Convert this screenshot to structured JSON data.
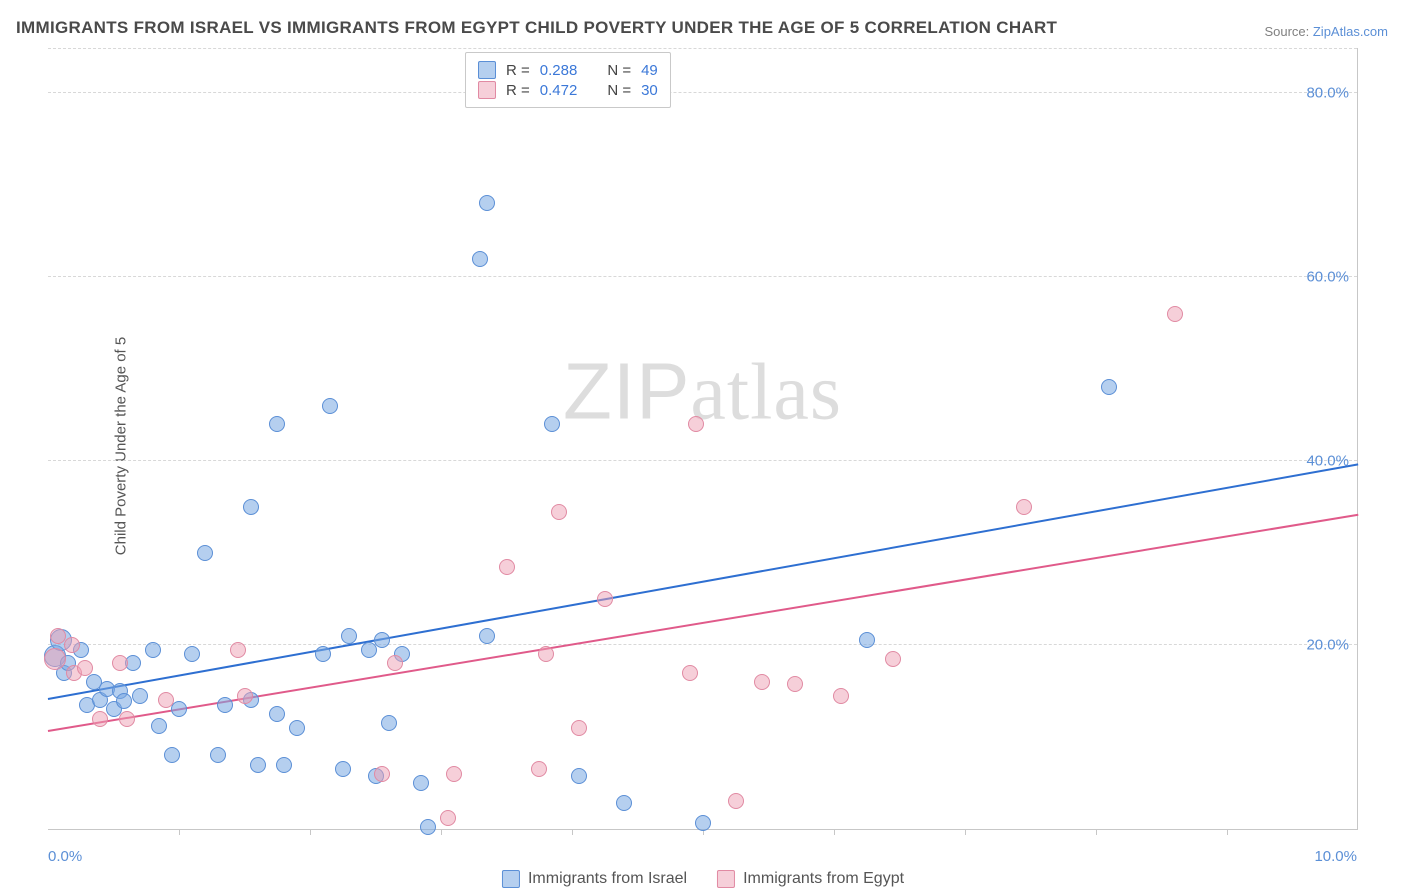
{
  "title": "IMMIGRANTS FROM ISRAEL VS IMMIGRANTS FROM EGYPT CHILD POVERTY UNDER THE AGE OF 5 CORRELATION CHART",
  "source_prefix": "Source: ",
  "source_name": "ZipAtlas.com",
  "ylabel": "Child Poverty Under the Age of 5",
  "watermark": "ZIPatlas",
  "chart": {
    "type": "scatter",
    "background_color": "#ffffff",
    "grid_color": "#d8d8d8",
    "axis_color": "#c7c7c7",
    "xlim": [
      0.0,
      10.0
    ],
    "ylim": [
      0.0,
      85.0
    ],
    "xticks": [
      0.0,
      10.0
    ],
    "xtick_labels": [
      "0.0%",
      "10.0%"
    ],
    "xtick_marks": [
      1.0,
      2.0,
      3.0,
      4.0,
      5.0,
      6.0,
      7.0,
      8.0,
      9.0
    ],
    "yticks": [
      20.0,
      40.0,
      60.0,
      80.0
    ],
    "ytick_labels": [
      "20.0%",
      "40.0%",
      "60.0%",
      "80.0%"
    ],
    "tick_fontsize": 15,
    "tick_color": "#5b8fd6",
    "marker_radius": 8,
    "marker_big_radius": 11,
    "series": [
      {
        "id": "israel",
        "label": "Immigrants from Israel",
        "color_fill": "rgba(120,168,226,0.55)",
        "color_stroke": "#5b8fd6",
        "R": "0.288",
        "N": "49",
        "trend": {
          "x1": 0.0,
          "y1": 14.0,
          "x2": 10.0,
          "y2": 39.5,
          "color": "#2e6fd1",
          "width": 2.3
        },
        "points": [
          {
            "x": 0.05,
            "y": 18.8,
            "r": 11
          },
          {
            "x": 0.1,
            "y": 20.5,
            "r": 11
          },
          {
            "x": 0.12,
            "y": 17.0
          },
          {
            "x": 0.15,
            "y": 18.0
          },
          {
            "x": 0.25,
            "y": 19.5
          },
          {
            "x": 0.3,
            "y": 13.5
          },
          {
            "x": 0.35,
            "y": 16.0
          },
          {
            "x": 0.4,
            "y": 14.0
          },
          {
            "x": 0.45,
            "y": 15.2
          },
          {
            "x": 0.55,
            "y": 15.0
          },
          {
            "x": 0.5,
            "y": 13.0
          },
          {
            "x": 0.58,
            "y": 13.9
          },
          {
            "x": 0.65,
            "y": 18.0
          },
          {
            "x": 0.7,
            "y": 14.5
          },
          {
            "x": 0.8,
            "y": 19.5
          },
          {
            "x": 0.85,
            "y": 11.2
          },
          {
            "x": 0.95,
            "y": 8.0
          },
          {
            "x": 1.0,
            "y": 13.0
          },
          {
            "x": 1.1,
            "y": 19.0
          },
          {
            "x": 1.2,
            "y": 30.0
          },
          {
            "x": 1.3,
            "y": 8.0
          },
          {
            "x": 1.35,
            "y": 13.5
          },
          {
            "x": 1.55,
            "y": 35.0
          },
          {
            "x": 1.55,
            "y": 14.0
          },
          {
            "x": 1.6,
            "y": 7.0
          },
          {
            "x": 1.75,
            "y": 12.5
          },
          {
            "x": 1.75,
            "y": 44.0
          },
          {
            "x": 1.8,
            "y": 7.0
          },
          {
            "x": 1.9,
            "y": 11.0
          },
          {
            "x": 2.1,
            "y": 19.0
          },
          {
            "x": 2.15,
            "y": 46.0
          },
          {
            "x": 2.25,
            "y": 6.5
          },
          {
            "x": 2.3,
            "y": 21.0
          },
          {
            "x": 2.45,
            "y": 19.5
          },
          {
            "x": 2.5,
            "y": 5.8
          },
          {
            "x": 2.55,
            "y": 20.5
          },
          {
            "x": 2.6,
            "y": 11.5
          },
          {
            "x": 2.7,
            "y": 19.0
          },
          {
            "x": 2.85,
            "y": 5.0
          },
          {
            "x": 2.9,
            "y": 0.2
          },
          {
            "x": 3.3,
            "y": 62.0
          },
          {
            "x": 3.35,
            "y": 68.0
          },
          {
            "x": 3.35,
            "y": 21.0
          },
          {
            "x": 3.85,
            "y": 44.0
          },
          {
            "x": 4.05,
            "y": 5.8
          },
          {
            "x": 4.4,
            "y": 2.8
          },
          {
            "x": 5.0,
            "y": 0.7
          },
          {
            "x": 6.25,
            "y": 20.5
          },
          {
            "x": 8.1,
            "y": 48.0
          }
        ]
      },
      {
        "id": "egypt",
        "label": "Immigrants from Egypt",
        "color_fill": "rgba(238,160,180,0.50)",
        "color_stroke": "#e18aa3",
        "R": "0.472",
        "N": "30",
        "trend": {
          "x1": 0.0,
          "y1": 10.5,
          "x2": 10.0,
          "y2": 34.0,
          "color": "#e05a8a",
          "width": 2.3
        },
        "points": [
          {
            "x": 0.05,
            "y": 18.5,
            "r": 11
          },
          {
            "x": 0.08,
            "y": 21.0
          },
          {
            "x": 0.18,
            "y": 20.0
          },
          {
            "x": 0.2,
            "y": 17.0
          },
          {
            "x": 0.28,
            "y": 17.5
          },
          {
            "x": 0.4,
            "y": 12.0
          },
          {
            "x": 0.55,
            "y": 18.0
          },
          {
            "x": 0.6,
            "y": 12.0
          },
          {
            "x": 0.9,
            "y": 14.0
          },
          {
            "x": 1.45,
            "y": 19.5
          },
          {
            "x": 1.5,
            "y": 14.5
          },
          {
            "x": 2.55,
            "y": 6.0
          },
          {
            "x": 2.65,
            "y": 18.0
          },
          {
            "x": 3.05,
            "y": 1.2
          },
          {
            "x": 3.1,
            "y": 6.0
          },
          {
            "x": 3.5,
            "y": 28.5
          },
          {
            "x": 3.75,
            "y": 6.5
          },
          {
            "x": 3.8,
            "y": 19.0
          },
          {
            "x": 3.9,
            "y": 34.5
          },
          {
            "x": 4.05,
            "y": 11.0
          },
          {
            "x": 4.25,
            "y": 25.0
          },
          {
            "x": 4.9,
            "y": 17.0
          },
          {
            "x": 4.95,
            "y": 44.0
          },
          {
            "x": 5.25,
            "y": 3.0
          },
          {
            "x": 5.45,
            "y": 16.0
          },
          {
            "x": 5.7,
            "y": 15.8
          },
          {
            "x": 6.05,
            "y": 14.5
          },
          {
            "x": 6.45,
            "y": 18.5
          },
          {
            "x": 7.45,
            "y": 35.0
          },
          {
            "x": 8.6,
            "y": 56.0
          }
        ]
      }
    ]
  },
  "legend_labels": {
    "R": "R =",
    "N": "N ="
  }
}
